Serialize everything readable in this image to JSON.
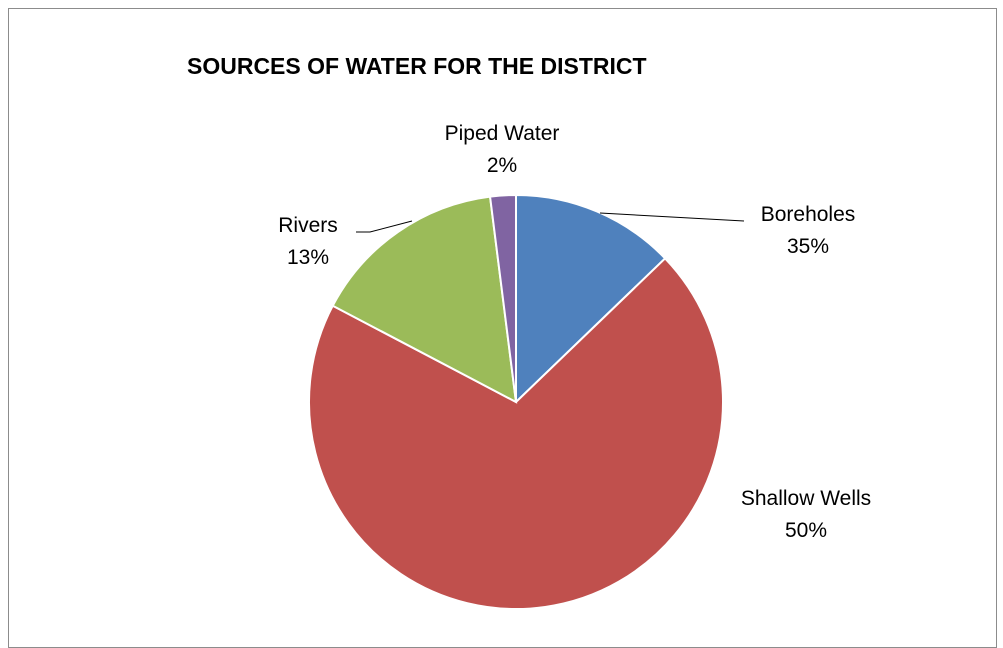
{
  "chart_data": {
    "type": "pie",
    "title": "SOURCES OF WATER FOR THE DISTRICT",
    "slices": [
      {
        "name": "Boreholes",
        "value": 35,
        "percent_label": "35%",
        "color": "#4f81bd"
      },
      {
        "name": "Shallow Wells",
        "value": 50,
        "percent_label": "50%",
        "color": "#c0504d"
      },
      {
        "name": "Rivers",
        "value": 13,
        "percent_label": "13%",
        "color": "#9bbb59"
      },
      {
        "name": "Piped Water",
        "value": 2,
        "percent_label": "2%",
        "color": "#8064a2"
      }
    ]
  }
}
